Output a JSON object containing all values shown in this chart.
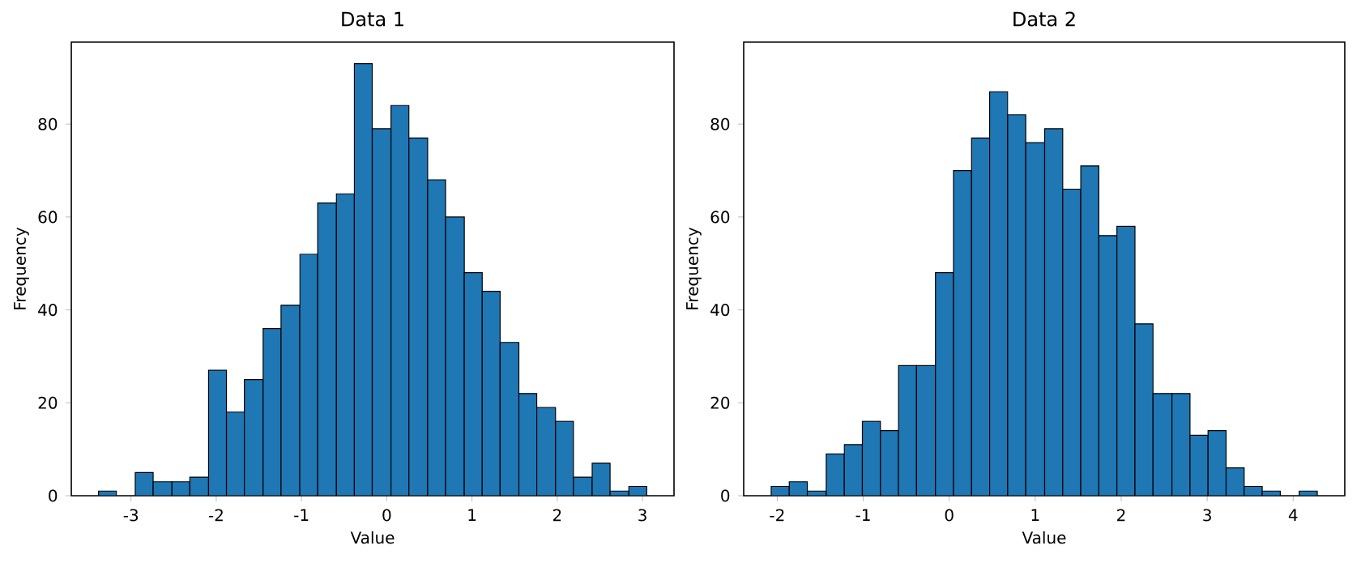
{
  "chart_data": [
    {
      "type": "histogram",
      "title": "Data 1",
      "xlabel": "Value",
      "ylabel": "Frequency",
      "color": "#1f77b4",
      "bins": [
        -3.38,
        -3.17,
        -2.95,
        -2.74,
        -2.52,
        -2.31,
        -2.09,
        -1.88,
        -1.67,
        -1.45,
        -1.24,
        -1.02,
        -0.81,
        -0.59,
        -0.38,
        -0.17,
        0.05,
        0.26,
        0.48,
        0.69,
        0.91,
        1.12,
        1.33,
        1.55,
        1.76,
        1.98,
        2.19,
        2.41,
        2.62,
        2.84,
        3.05
      ],
      "values": [
        1,
        0,
        5,
        3,
        3,
        4,
        27,
        18,
        25,
        36,
        41,
        52,
        63,
        65,
        93,
        79,
        84,
        77,
        68,
        60,
        48,
        44,
        33,
        22,
        19,
        16,
        4,
        7,
        1,
        2
      ],
      "xlim": [
        -3.7,
        3.37
      ],
      "ylim": [
        0,
        97.65
      ],
      "xticks": [
        -3,
        -2,
        -1,
        0,
        1,
        2,
        3
      ],
      "yticks": [
        0,
        20,
        40,
        60,
        80
      ]
    },
    {
      "type": "histogram",
      "title": "Data 2",
      "xlabel": "Value",
      "ylabel": "Frequency",
      "color": "#1f77b4",
      "bins": [
        -2.07,
        -1.86,
        -1.65,
        -1.43,
        -1.22,
        -1.01,
        -0.8,
        -0.59,
        -0.38,
        -0.16,
        0.05,
        0.26,
        0.47,
        0.68,
        0.89,
        1.11,
        1.32,
        1.53,
        1.74,
        1.95,
        2.16,
        2.37,
        2.59,
        2.8,
        3.01,
        3.22,
        3.43,
        3.64,
        3.85,
        4.07,
        4.28
      ],
      "values": [
        2,
        3,
        1,
        9,
        11,
        16,
        14,
        28,
        28,
        48,
        70,
        77,
        87,
        82,
        76,
        79,
        66,
        71,
        56,
        58,
        37,
        22,
        22,
        13,
        14,
        6,
        2,
        1,
        0,
        1
      ],
      "xlim": [
        -2.39,
        4.6
      ],
      "ylim": [
        0,
        97.65
      ],
      "xticks": [
        -2,
        -1,
        0,
        1,
        2,
        3,
        4
      ],
      "yticks": [
        0,
        20,
        40,
        60,
        80
      ]
    }
  ]
}
